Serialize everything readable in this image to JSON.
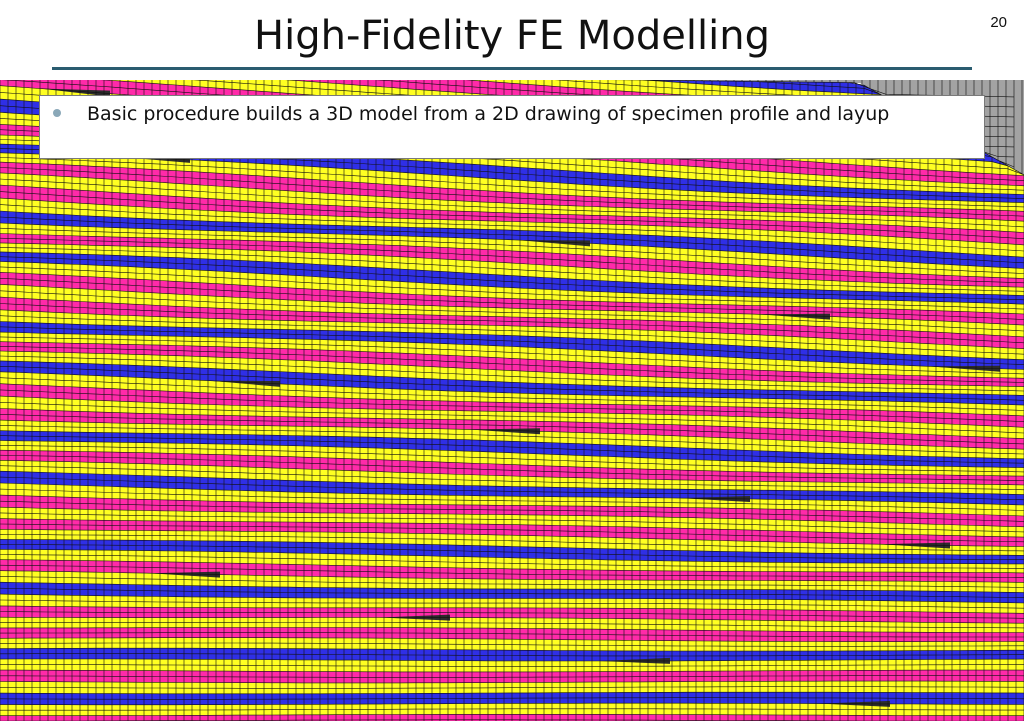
{
  "slide": {
    "title": "High-Fidelity FE Modelling",
    "number": "20"
  },
  "callout": {
    "bullets": [
      "Basic procedure builds a 3D model from a 2D drawing of specimen profile and layup"
    ]
  },
  "mesh": {
    "ply_colors": [
      "#ffff22",
      "#ff2aa9",
      "#2f2fe6"
    ],
    "resin_color": "#2c2c2c",
    "tool_color": "#a3a3a3",
    "grid_color": "#111111",
    "accent_rule_color": "#2a5c70"
  }
}
